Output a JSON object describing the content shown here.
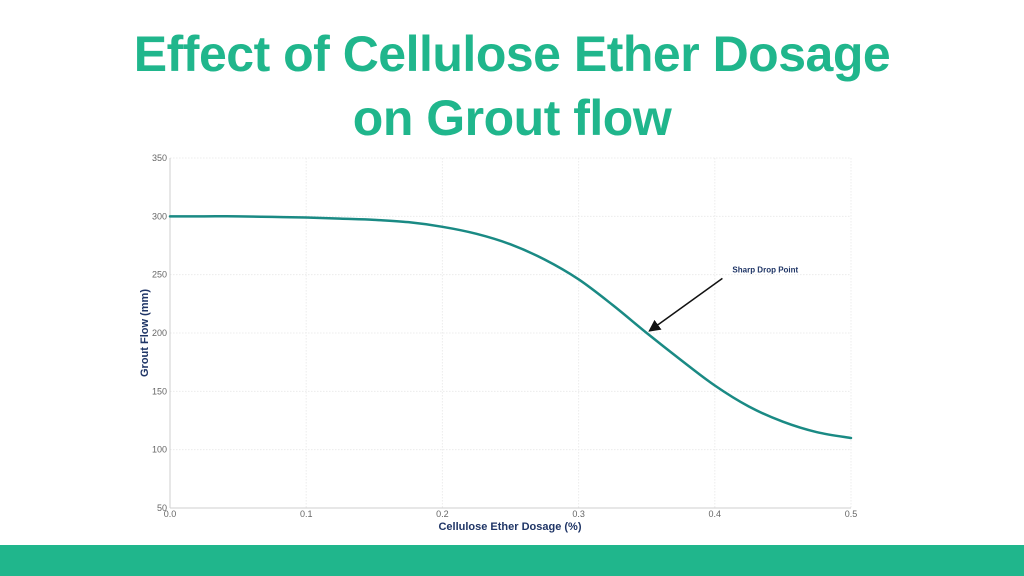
{
  "title": {
    "line1": "Effect of Cellulose Ether Dosage",
    "line2": "on Grout flow"
  },
  "colors": {
    "title": "#20b68c",
    "line": "#1a8a84",
    "footer": "#20b68c",
    "axis_label": "#1f3566"
  },
  "chart_data": {
    "type": "line",
    "xlabel": "Cellulose Ether Dosage (%)",
    "ylabel": "Grout Flow (mm)",
    "xlim": [
      0.0,
      0.5
    ],
    "ylim": [
      50,
      350
    ],
    "x_ticks": [
      "0.0",
      "0.1",
      "0.2",
      "0.3",
      "0.4",
      "0.5"
    ],
    "y_ticks": [
      "50",
      "100",
      "150",
      "200",
      "250",
      "300",
      "350"
    ],
    "grid": true,
    "series": [
      {
        "x": [
          0.0,
          0.025,
          0.05,
          0.075,
          0.1,
          0.125,
          0.15,
          0.175,
          0.2,
          0.225,
          0.25,
          0.275,
          0.3,
          0.325,
          0.35,
          0.375,
          0.4,
          0.425,
          0.45,
          0.475,
          0.5
        ],
        "values": [
          300,
          300,
          300,
          299.5,
          299,
          298,
          297,
          295,
          291,
          285,
          276,
          263,
          246,
          224,
          200,
          177,
          155,
          137,
          124,
          115,
          110
        ]
      }
    ],
    "annotations": [
      {
        "text": "Sharp Drop Point",
        "x": 0.35,
        "y": 200,
        "text_x": 0.41,
        "text_y": 252
      }
    ]
  }
}
